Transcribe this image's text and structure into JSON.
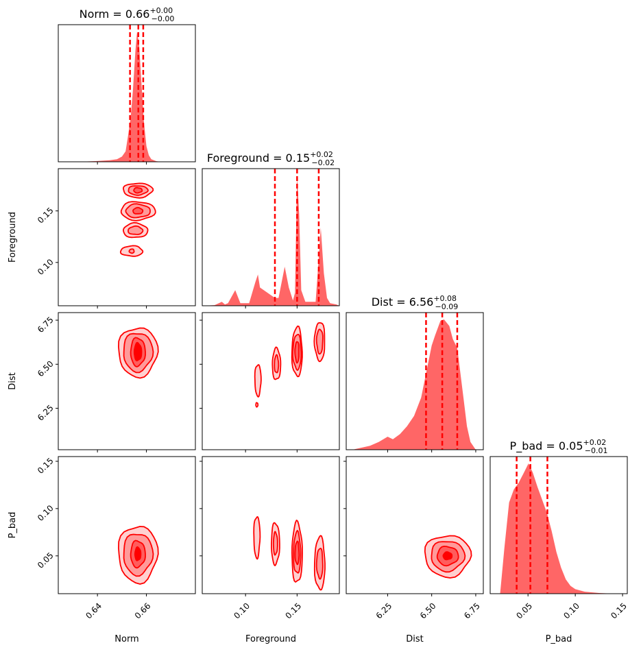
{
  "chart_data": {
    "type": "corner",
    "parameters": [
      "Norm",
      "Foreground",
      "Dist",
      "P_bad"
    ],
    "color": "#ff0000",
    "fill_color": "#ff6666",
    "titles": [
      {
        "param": "Norm",
        "prefix": "Norm = ",
        "median": "0.66",
        "plus": "+0.00",
        "minus": "−0.00"
      },
      {
        "param": "Foreground",
        "prefix": "Foreground = ",
        "median": "0.15",
        "plus": "+0.02",
        "minus": "−0.02"
      },
      {
        "param": "Dist",
        "prefix": "Dist = ",
        "median": "6.56",
        "plus": "+0.08",
        "minus": "−0.09"
      },
      {
        "param": "P_bad",
        "prefix": "P_bad = ",
        "median": "0.05",
        "plus": "+0.02",
        "minus": "−0.01"
      }
    ],
    "axes": {
      "Norm": {
        "range": [
          0.624,
          0.68
        ],
        "ticks": [
          0.64,
          0.66
        ],
        "tick_labels": [
          "0.64",
          "0.66"
        ],
        "label": "Norm"
      },
      "Foreground": {
        "range": [
          0.058,
          0.191
        ],
        "ticks": [
          0.1,
          0.15
        ],
        "tick_labels": [
          "0.10",
          "0.15"
        ],
        "label": "Foreground"
      },
      "Dist": {
        "range": [
          6.015,
          6.793
        ],
        "ticks": [
          6.25,
          6.5,
          6.75
        ],
        "tick_labels": [
          "6.25",
          "6.50",
          "6.75"
        ],
        "label": "Dist"
      },
      "P_bad": {
        "range": [
          0.01,
          0.155
        ],
        "ticks": [
          0.05,
          0.1,
          0.15
        ],
        "tick_labels": [
          "0.05",
          "0.10",
          "0.15"
        ],
        "label": "P_bad"
      }
    },
    "quantile_lines": {
      "Norm": [
        0.6533,
        0.6567,
        0.6587
      ],
      "Foreground": [
        0.1285,
        0.15,
        0.171
      ],
      "Dist": [
        6.468,
        6.56,
        6.645
      ],
      "P_bad": [
        0.038,
        0.0525,
        0.0705
      ]
    },
    "marginals": {
      "Norm": {
        "x": [
          0.6296,
          0.635,
          0.64,
          0.645,
          0.648,
          0.65,
          0.6515,
          0.6525,
          0.6535,
          0.6545,
          0.6555,
          0.6562,
          0.657,
          0.658,
          0.659,
          0.66,
          0.661,
          0.662,
          0.664,
          0.666
        ],
        "y": [
          0.0,
          0.002,
          0.006,
          0.012,
          0.02,
          0.04,
          0.08,
          0.2,
          0.33,
          0.55,
          0.85,
          1.0,
          0.9,
          0.6,
          0.3,
          0.12,
          0.05,
          0.02,
          0.005,
          0.0
        ]
      },
      "Foreground": {
        "x": [
          0.058,
          0.07,
          0.077,
          0.08,
          0.083,
          0.09,
          0.095,
          0.1035,
          0.1065,
          0.1095,
          0.112,
          0.114,
          0.1285,
          0.132,
          0.135,
          0.138,
          0.142,
          0.146,
          0.148,
          0.15,
          0.152,
          0.154,
          0.158,
          0.168,
          0.17,
          0.173,
          0.176,
          0.179,
          0.182,
          0.188,
          0.191
        ],
        "y": [
          0.0,
          0.005,
          0.03,
          0.01,
          0.02,
          0.12,
          0.02,
          0.02,
          0.1,
          0.18,
          0.24,
          0.14,
          0.06,
          0.06,
          0.18,
          0.3,
          0.14,
          0.04,
          0.1,
          1.0,
          0.7,
          0.12,
          0.03,
          0.03,
          0.25,
          0.6,
          0.25,
          0.06,
          0.02,
          0.01,
          0.0
        ]
      },
      "Dist": {
        "x": [
          6.05,
          6.15,
          6.2,
          6.25,
          6.28,
          6.32,
          6.36,
          6.4,
          6.44,
          6.47,
          6.5,
          6.52,
          6.55,
          6.57,
          6.6,
          6.62,
          6.645,
          6.66,
          6.68,
          6.7,
          6.72,
          6.75
        ],
        "y": [
          0.0,
          0.03,
          0.06,
          0.1,
          0.08,
          0.12,
          0.18,
          0.26,
          0.4,
          0.6,
          0.8,
          0.88,
          0.99,
          1.0,
          0.95,
          0.85,
          0.78,
          0.62,
          0.4,
          0.18,
          0.06,
          0.0
        ]
      },
      "P_bad": {
        "x": [
          0.0205,
          0.025,
          0.03,
          0.035,
          0.04,
          0.045,
          0.0505,
          0.055,
          0.06,
          0.065,
          0.07,
          0.075,
          0.08,
          0.085,
          0.09,
          0.095,
          0.1,
          0.11,
          0.125,
          0.14
        ],
        "y": [
          0.0,
          0.35,
          0.7,
          0.8,
          0.85,
          0.92,
          1.0,
          0.93,
          0.82,
          0.72,
          0.62,
          0.48,
          0.32,
          0.2,
          0.11,
          0.06,
          0.035,
          0.015,
          0.005,
          0.0
        ]
      }
    },
    "contours_2d": [
      {
        "x": "Norm",
        "y": "Foreground",
        "blobs": [
          {
            "cx": 0.6565,
            "cy": 0.17,
            "levels": [
              [
                0.006,
                0.007
              ],
              [
                0.004,
                0.0045
              ],
              [
                0.0017,
                0.0025
              ]
            ]
          },
          {
            "cx": 0.6565,
            "cy": 0.15,
            "levels": [
              [
                0.007,
                0.009
              ],
              [
                0.005,
                0.0065
              ],
              [
                0.002,
                0.003
              ]
            ]
          },
          {
            "cx": 0.6555,
            "cy": 0.131,
            "levels": [
              [
                0.005,
                0.007
              ],
              [
                0.003,
                0.004
              ]
            ]
          },
          {
            "cx": 0.654,
            "cy": 0.111,
            "levels": [
              [
                0.0045,
                0.005
              ],
              [
                0.001,
                0.002
              ]
            ]
          }
        ]
      },
      {
        "x": "Norm",
        "y": "Dist",
        "blobs": [
          {
            "cx": 0.6565,
            "cy": 6.57,
            "levels": [
              [
                0.008,
                0.14
              ],
              [
                0.006,
                0.11
              ],
              [
                0.003,
                0.08
              ],
              [
                0.0015,
                0.05
              ]
            ]
          }
        ]
      },
      {
        "x": "Foreground",
        "y": "Dist",
        "blobs": [
          {
            "cx": 0.112,
            "cy": 6.41,
            "levels": [
              [
                0.003,
                0.09
              ]
            ]
          },
          {
            "cx": 0.111,
            "cy": 6.27,
            "levels": [
              [
                0.001,
                0.012
              ]
            ]
          },
          {
            "cx": 0.13,
            "cy": 6.5,
            "levels": [
              [
                0.004,
                0.09
              ],
              [
                0.002,
                0.05
              ]
            ]
          },
          {
            "cx": 0.15,
            "cy": 6.57,
            "levels": [
              [
                0.005,
                0.14
              ],
              [
                0.004,
                0.1
              ],
              [
                0.002,
                0.06
              ]
            ]
          },
          {
            "cx": 0.172,
            "cy": 6.63,
            "levels": [
              [
                0.005,
                0.11
              ],
              [
                0.003,
                0.07
              ]
            ]
          }
        ]
      },
      {
        "x": "Norm",
        "y": "P_bad",
        "blobs": [
          {
            "cx": 0.6565,
            "cy": 0.052,
            "levels": [
              [
                0.008,
                0.03
              ],
              [
                0.006,
                0.022
              ],
              [
                0.003,
                0.014
              ],
              [
                0.0012,
                0.007
              ]
            ]
          }
        ]
      },
      {
        "x": "Foreground",
        "y": "P_bad",
        "blobs": [
          {
            "cx": 0.111,
            "cy": 0.07,
            "levels": [
              [
                0.003,
                0.022
              ]
            ]
          },
          {
            "cx": 0.129,
            "cy": 0.063,
            "levels": [
              [
                0.004,
                0.022
              ],
              [
                0.002,
                0.012
              ]
            ]
          },
          {
            "cx": 0.15,
            "cy": 0.053,
            "levels": [
              [
                0.005,
                0.032
              ],
              [
                0.0035,
                0.022
              ],
              [
                0.002,
                0.012
              ]
            ]
          },
          {
            "cx": 0.172,
            "cy": 0.042,
            "levels": [
              [
                0.005,
                0.028
              ],
              [
                0.003,
                0.016
              ]
            ]
          }
        ]
      },
      {
        "x": "Dist",
        "y": "P_bad",
        "blobs": [
          {
            "cx": 6.59,
            "cy": 0.05,
            "levels": [
              [
                0.13,
                0.022
              ],
              [
                0.095,
                0.016
              ],
              [
                0.06,
                0.01
              ],
              [
                0.025,
                0.004
              ]
            ]
          }
        ]
      }
    ]
  }
}
